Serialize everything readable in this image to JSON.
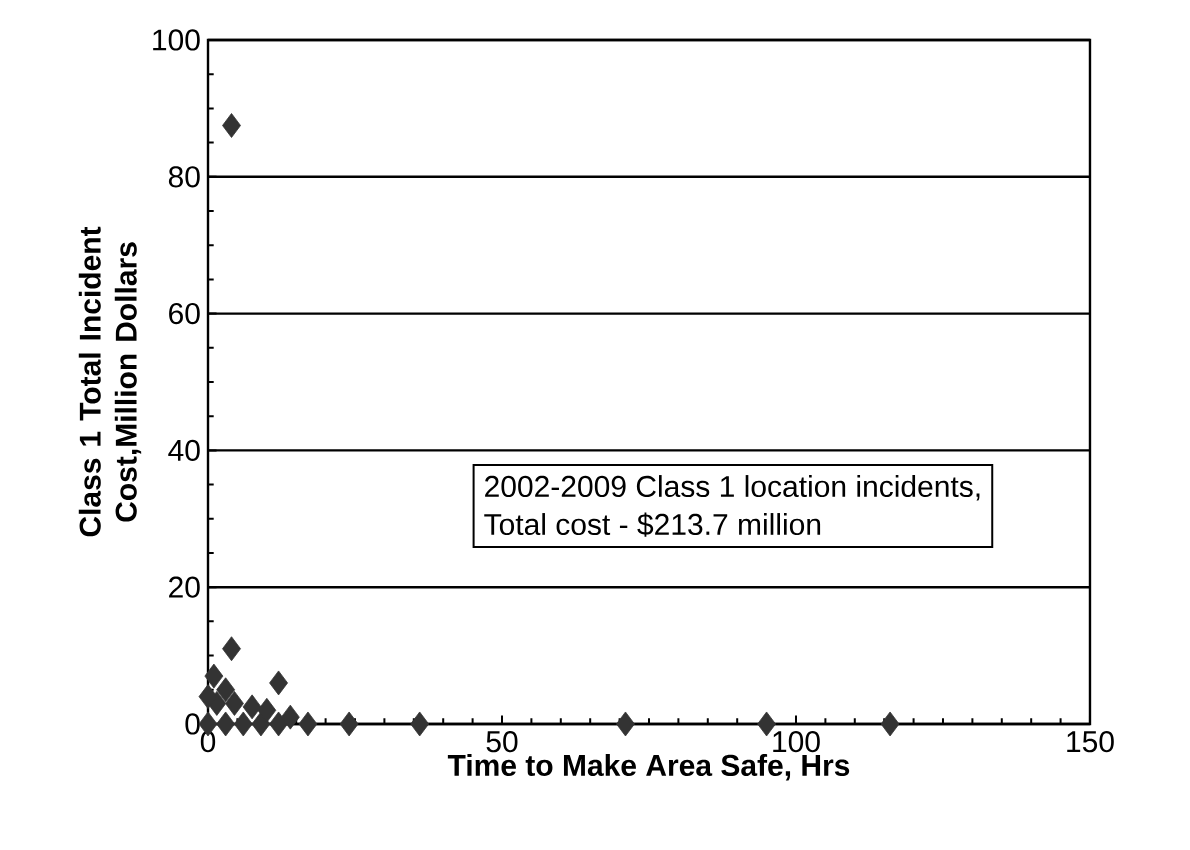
{
  "chart_data": {
    "type": "scatter",
    "xlabel": "Time to Make Area Safe, Hrs",
    "ylabel": "Class 1 Total Incident Cost,Million  Dollars",
    "annotations": [
      "2002-2009 Class 1 location incidents,",
      "Total cost  - $213.7 million"
    ],
    "xlim": [
      0,
      150
    ],
    "ylim": [
      0,
      100
    ],
    "xticks": [
      0,
      50,
      100,
      150
    ],
    "yticks": [
      0,
      20,
      40,
      60,
      80,
      100
    ],
    "grid": "y",
    "marker": "diamond",
    "series": [
      {
        "color": "#333333",
        "x": [
          4,
          4,
          12,
          1,
          0,
          3,
          6,
          9,
          12,
          14,
          1.5,
          4.5,
          7.5,
          10,
          0,
          3,
          17,
          24,
          36,
          71,
          95,
          116
        ],
        "values": [
          87.5,
          11,
          6,
          7,
          0,
          0,
          0,
          0,
          0,
          1,
          3,
          3,
          2.5,
          2,
          4,
          5,
          0,
          0,
          0,
          0,
          0,
          0
        ]
      }
    ]
  }
}
